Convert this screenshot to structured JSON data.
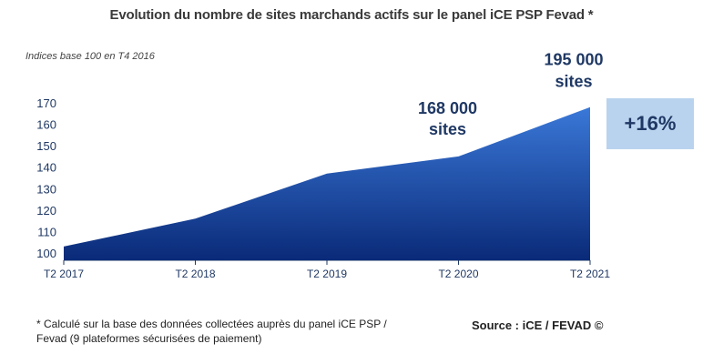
{
  "chart_data": {
    "type": "area",
    "title": "Evolution du nombre de sites marchands actifs sur le panel iCE PSP Fevad *",
    "subtitle": "Indices base 100 en T4 2016",
    "categories": [
      "T2 2017",
      "T2 2018",
      "T2 2019",
      "T2 2020",
      "T2 2021"
    ],
    "values": [
      103,
      116,
      137,
      145,
      168
    ],
    "ylim": [
      100,
      170
    ],
    "yticks": [
      100,
      110,
      120,
      130,
      140,
      150,
      160,
      170
    ],
    "xlabel": "",
    "ylabel": "",
    "colors": {
      "fill_top": "#3a78d8",
      "fill_bottom": "#0a2a78",
      "text": "#1f3864",
      "badge_bg": "#b9d3ee"
    },
    "annotations": [
      {
        "category": "T2 2020",
        "line1": "168 000",
        "line2": "sites"
      },
      {
        "category": "T2 2021",
        "line1": "195 000",
        "line2": "sites"
      }
    ],
    "badge": "+16%"
  },
  "footnote": "* Calculé sur la base des données collectées auprès du panel iCE PSP / Fevad (9 plateformes sécurisées de paiement)",
  "source": "Source : iCE / FEVAD ©"
}
